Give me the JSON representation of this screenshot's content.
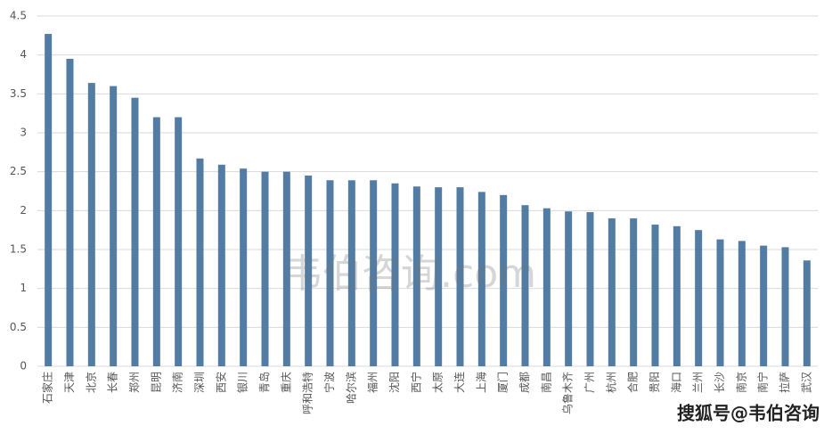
{
  "chart_data": {
    "type": "bar",
    "categories": [
      "石家庄",
      "天津",
      "北京",
      "长春",
      "郑州",
      "昆明",
      "济南",
      "深圳",
      "西安",
      "银川",
      "青岛",
      "重庆",
      "呼和浩特",
      "宁波",
      "哈尔滨",
      "福州",
      "沈阳",
      "西宁",
      "太原",
      "大连",
      "上海",
      "厦门",
      "成都",
      "南昌",
      "乌鲁木齐",
      "广州",
      "杭州",
      "合肥",
      "贵阳",
      "海口",
      "兰州",
      "长沙",
      "南京",
      "南宁",
      "拉萨",
      "武汉"
    ],
    "values": [
      4.27,
      3.95,
      3.64,
      3.6,
      3.45,
      3.2,
      3.2,
      2.67,
      2.59,
      2.54,
      2.5,
      2.5,
      2.45,
      2.39,
      2.39,
      2.39,
      2.35,
      2.31,
      2.3,
      2.3,
      2.24,
      2.2,
      2.07,
      2.03,
      1.99,
      1.98,
      1.9,
      1.9,
      1.82,
      1.8,
      1.75,
      1.63,
      1.61,
      1.55,
      1.53,
      1.36
    ],
    "color": "#527ca3",
    "ylim": [
      0,
      4.5
    ],
    "yticks": [
      0,
      0.5,
      1,
      1.5,
      2,
      2.5,
      3,
      3.5,
      4,
      4.5
    ],
    "grid": true,
    "watermarks": [
      "韦伯咨询.com",
      "搜狐号@韦伯咨询"
    ]
  }
}
